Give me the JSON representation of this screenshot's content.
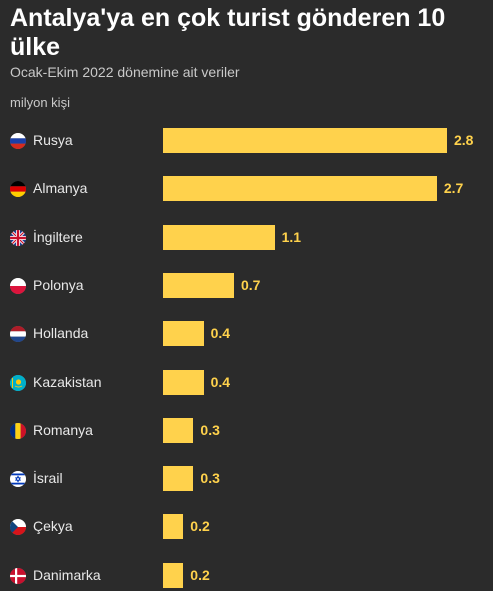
{
  "title": "Antalya'ya en çok turist gönderen 10 ülke",
  "subtitle": "Ocak-Ekim 2022 dönemine ait veriler",
  "unit_label": "milyon kişi",
  "colors": {
    "bar": "#ffd24c",
    "background": "#2b2b2b"
  },
  "chart_data": {
    "type": "bar",
    "orientation": "horizontal",
    "title": "Antalya'ya en çok turist gönderen 10 ülke",
    "subtitle": "Ocak-Ekim 2022 dönemine ait veriler",
    "xlabel": "milyon kişi",
    "ylabel": "",
    "grid": false,
    "legend": "none",
    "categories": [
      "Rusya",
      "Almanya",
      "İngiltere",
      "Polonya",
      "Hollanda",
      "Kazakistan",
      "Romanya",
      "İsrail",
      "Çekya",
      "Danimarka"
    ],
    "values": [
      2.8,
      2.7,
      1.1,
      0.7,
      0.4,
      0.4,
      0.3,
      0.3,
      0.2,
      0.2
    ],
    "value_labels": [
      "2.8",
      "2.7",
      "1.1",
      "0.7",
      "0.4",
      "0.4",
      "0.3",
      "0.3",
      "0.2",
      "0.2"
    ],
    "flag_icons": [
      "russia-flag-icon",
      "germany-flag-icon",
      "uk-flag-icon",
      "poland-flag-icon",
      "netherlands-flag-icon",
      "kazakhstan-flag-icon",
      "romania-flag-icon",
      "israel-flag-icon",
      "czechia-flag-icon",
      "denmark-flag-icon"
    ],
    "xlim": [
      0,
      2.8
    ]
  }
}
